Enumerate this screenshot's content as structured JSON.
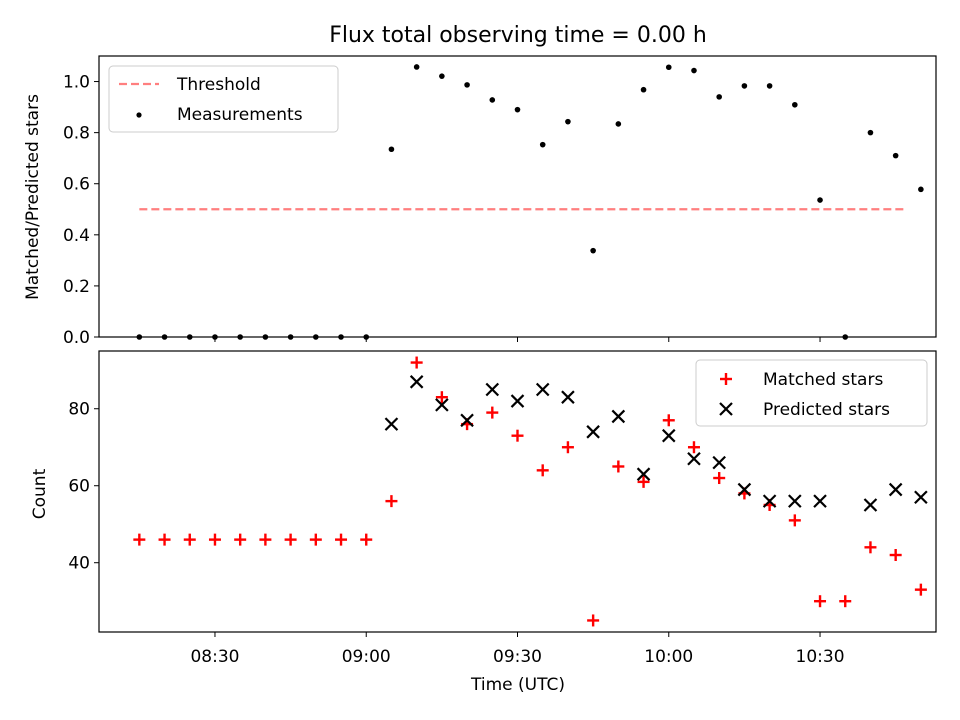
{
  "chart_data": [
    {
      "type": "scatter",
      "title": "Flux total observing time = 0.00 h",
      "xlabel": "",
      "ylabel": "Matched/Predicted stars",
      "ylim": [
        0,
        1.1
      ],
      "yticks": [
        "0.0",
        "0.2",
        "0.4",
        "0.6",
        "0.8",
        "1.0"
      ],
      "legend_position": "top-left",
      "legend": [
        "Threshold",
        "Measurements"
      ],
      "threshold": {
        "name": "Threshold",
        "value": 0.5,
        "x_start": "08:15",
        "x_end": "10:47",
        "color": "#ff7f7f",
        "style": "dashed"
      },
      "series": [
        {
          "name": "Measurements",
          "color": "#000000",
          "marker": "dot",
          "x": [
            "08:15",
            "08:20",
            "08:25",
            "08:30",
            "08:35",
            "08:40",
            "08:45",
            "08:50",
            "08:55",
            "09:00",
            "09:05",
            "09:10",
            "09:15",
            "09:20",
            "09:25",
            "09:30",
            "09:35",
            "09:40",
            "09:45",
            "09:50",
            "09:55",
            "10:00",
            "10:05",
            "10:10",
            "10:15",
            "10:20",
            "10:25",
            "10:30",
            "10:35",
            "10:40",
            "10:45",
            "10:50"
          ],
          "y": [
            0,
            0,
            0,
            0,
            0,
            0,
            0,
            0,
            0,
            0,
            0.735,
            1.057,
            1.021,
            0.987,
            0.928,
            0.89,
            0.753,
            0.843,
            0.338,
            0.834,
            0.968,
            1.056,
            1.043,
            0.94,
            0.983,
            0.983,
            0.909,
            0.536,
            0.0,
            0.8,
            0.71,
            0.578
          ]
        }
      ]
    },
    {
      "type": "scatter",
      "title": "",
      "xlabel": "Time (UTC)",
      "ylabel": "Count",
      "xlim": [
        "08:07",
        "10:53"
      ],
      "ylim": [
        22,
        95
      ],
      "xticks": [
        "08:30",
        "09:00",
        "09:30",
        "10:00",
        "10:30"
      ],
      "yticks": [
        "40",
        "60",
        "80"
      ],
      "legend_position": "top-right",
      "legend": [
        "Matched stars",
        "Predicted stars"
      ],
      "series": [
        {
          "name": "Matched stars",
          "color": "#ff0000",
          "marker": "plus",
          "x": [
            "08:15",
            "08:20",
            "08:25",
            "08:30",
            "08:35",
            "08:40",
            "08:45",
            "08:50",
            "08:55",
            "09:00",
            "09:05",
            "09:10",
            "09:15",
            "09:20",
            "09:25",
            "09:30",
            "09:35",
            "09:40",
            "09:45",
            "09:50",
            "09:55",
            "10:00",
            "10:05",
            "10:10",
            "10:15",
            "10:20",
            "10:25",
            "10:30",
            "10:35",
            "10:40",
            "10:45",
            "10:50"
          ],
          "y": [
            46,
            46,
            46,
            46,
            46,
            46,
            46,
            46,
            46,
            46,
            56,
            92,
            83,
            76,
            79,
            73,
            64,
            70,
            25,
            65,
            61,
            77,
            70,
            62,
            58,
            55,
            51,
            30,
            30,
            44,
            42,
            33
          ]
        },
        {
          "name": "Predicted stars",
          "color": "#000000",
          "marker": "x",
          "x": [
            "09:05",
            "09:10",
            "09:15",
            "09:20",
            "09:25",
            "09:30",
            "09:35",
            "09:40",
            "09:45",
            "09:50",
            "09:55",
            "10:00",
            "10:05",
            "10:10",
            "10:15",
            "10:20",
            "10:25",
            "10:30",
            "10:40",
            "10:45",
            "10:50"
          ],
          "y": [
            76,
            87,
            81,
            77,
            85,
            82,
            85,
            83,
            74,
            78,
            63,
            73,
            67,
            66,
            59,
            56,
            56,
            56,
            55,
            59,
            57
          ]
        }
      ]
    }
  ]
}
